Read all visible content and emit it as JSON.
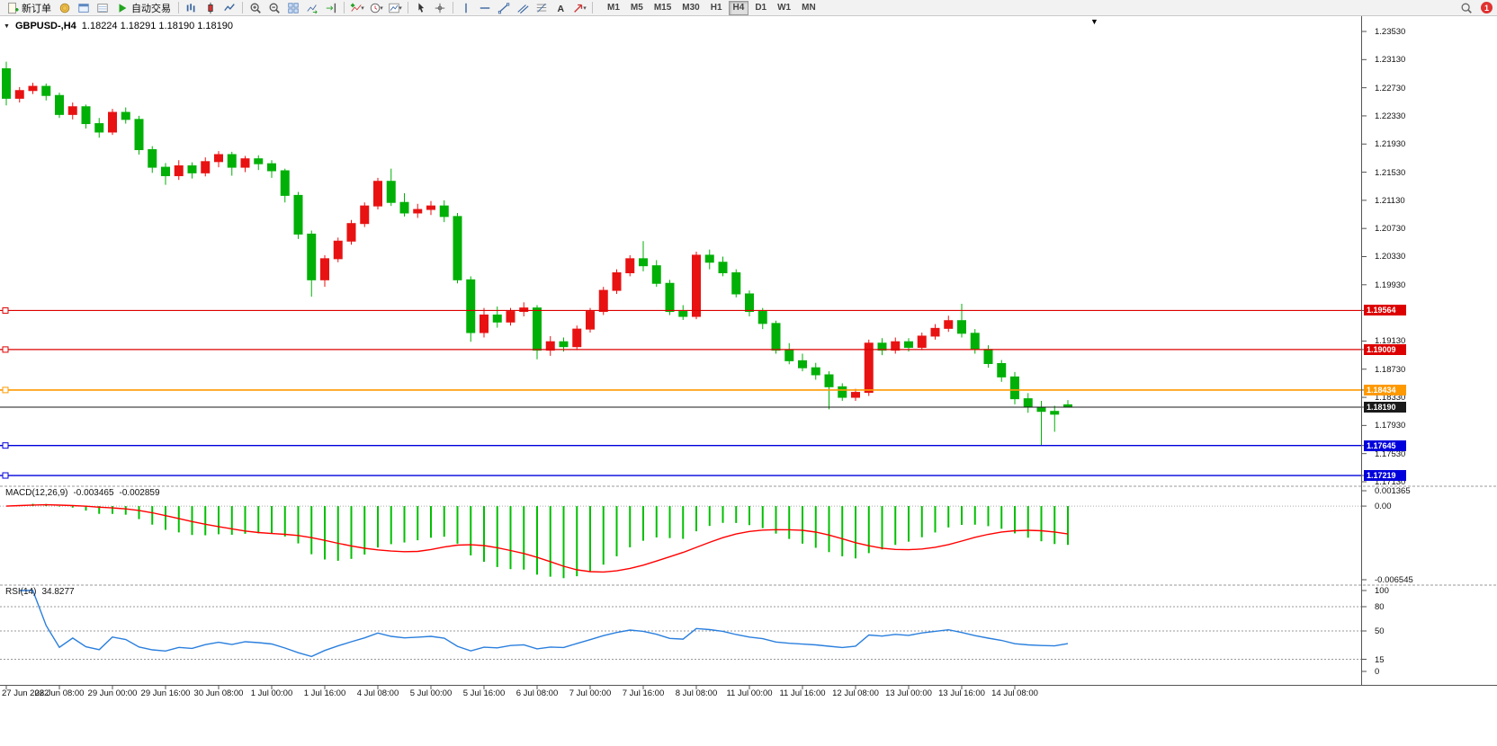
{
  "colors": {
    "up": "#e81212",
    "down": "#00b007",
    "macd_hist": "#00c000",
    "macd_signal": "#ff0000",
    "rsi_line": "#2a7fde"
  },
  "toolbar": {
    "items": [
      {
        "t": "btn",
        "n": "new-order",
        "g": "newdoc",
        "label": "新订单"
      },
      {
        "t": "ico",
        "n": "charts-profile",
        "g": "coin"
      },
      {
        "t": "ico",
        "n": "profiles",
        "g": "window"
      },
      {
        "t": "ico",
        "n": "terminal",
        "g": "terminal"
      },
      {
        "t": "btn",
        "n": "auto-trading",
        "g": "play",
        "label": "自动交易"
      },
      {
        "t": "sep"
      },
      {
        "t": "ico",
        "n": "bar-chart",
        "g": "bars"
      },
      {
        "t": "ico",
        "n": "candlestick-chart",
        "g": "candle"
      },
      {
        "t": "ico",
        "n": "line-chart",
        "g": "line"
      },
      {
        "t": "sep"
      },
      {
        "t": "ico",
        "n": "zoom-in",
        "g": "zoomin"
      },
      {
        "t": "ico",
        "n": "zoom-out",
        "g": "zoomout"
      },
      {
        "t": "ico",
        "n": "tile-windows",
        "g": "tile"
      },
      {
        "t": "ico",
        "n": "auto-scroll",
        "g": "autoscroll"
      },
      {
        "t": "ico",
        "n": "chart-shift",
        "g": "shift"
      },
      {
        "t": "sep"
      },
      {
        "t": "ico",
        "n": "indicators",
        "g": "indicators",
        "dd": true
      },
      {
        "t": "ico",
        "n": "periods",
        "g": "clock",
        "dd": true
      },
      {
        "t": "ico",
        "n": "templates",
        "g": "template",
        "dd": true
      },
      {
        "t": "sep"
      },
      {
        "t": "ico",
        "n": "cursor",
        "g": "cursor"
      },
      {
        "t": "ico",
        "n": "crosshair",
        "g": "crosshair"
      },
      {
        "t": "sep"
      },
      {
        "t": "ico",
        "n": "vertical-line",
        "g": "vline"
      },
      {
        "t": "ico",
        "n": "horizontal-line",
        "g": "hline"
      },
      {
        "t": "ico",
        "n": "trendline",
        "g": "trend"
      },
      {
        "t": "ico",
        "n": "equidistant-channel",
        "g": "channel"
      },
      {
        "t": "ico",
        "n": "fibonacci-retracement",
        "g": "fibo"
      },
      {
        "t": "ico",
        "n": "text-label",
        "g": "text"
      },
      {
        "t": "ico",
        "n": "arrow-objects",
        "g": "arrow",
        "dd": true
      },
      {
        "t": "sep"
      }
    ],
    "timeframes": [
      "M1",
      "M5",
      "M15",
      "M30",
      "H1",
      "H4",
      "D1",
      "W1",
      "MN"
    ],
    "active_timeframe": "H4",
    "search_icon": "search",
    "notification_count": "1"
  },
  "chart": {
    "symbol_period": "GBPUSD-,H4",
    "ohlc": "1.18224 1.18291 1.18190 1.18190",
    "axis_labels": [
      "1.23530",
      "1.23130",
      "1.22730",
      "1.22330",
      "1.21930",
      "1.21530",
      "1.21130",
      "1.20730",
      "1.20330",
      "1.19930",
      "1.19130",
      "1.18730",
      "1.18330",
      "1.17930",
      "1.17530",
      "1.17130"
    ],
    "hlines": [
      {
        "price": 1.19564,
        "label": "1.19564",
        "color": "#dd0000",
        "handle": true,
        "width": 1.2
      },
      {
        "price": 1.19009,
        "label": "1.19009",
        "color": "#dd0000",
        "handle": true,
        "width": 1.2
      },
      {
        "price": 1.18434,
        "label": "1.18434",
        "color": "#ff9900",
        "handle": true,
        "width": 1.6
      },
      {
        "price": 1.1819,
        "label": "1.18190",
        "color": "#1a1a1a",
        "handle": false,
        "width": 1
      },
      {
        "price": 1.17645,
        "label": "1.17645",
        "color": "#0000dd",
        "handle": true,
        "width": 1.4
      },
      {
        "price": 1.17219,
        "label": "1.17219",
        "color": "#0000dd",
        "handle": true,
        "width": 1.4
      }
    ]
  },
  "macd": {
    "name": "MACD(12,26,9)",
    "value_main": "-0.003465",
    "value_signal": "-0.002859",
    "axis_max": "0.001365",
    "axis_zero": "0.00",
    "axis_min": "-0.006545"
  },
  "rsi": {
    "name": "RSI(14)",
    "value": "34.8277",
    "axis": [
      "100",
      "80",
      "50",
      "15",
      "0"
    ],
    "levels": [
      80,
      50,
      15
    ]
  },
  "time_axis": [
    "27 Jun 2022",
    "28 Jun 08:00",
    "29 Jun 00:00",
    "29 Jun 16:00",
    "30 Jun 08:00",
    "1 Jul 00:00",
    "1 Jul 16:00",
    "4 Jul 08:00",
    "5 Jul 00:00",
    "5 Jul 16:00",
    "6 Jul 08:00",
    "7 Jul 00:00",
    "7 Jul 16:00",
    "8 Jul 08:00",
    "11 Jul 00:00",
    "11 Jul 16:00",
    "12 Jul 08:00",
    "13 Jul 00:00",
    "13 Jul 16:00",
    "14 Jul 08:00"
  ],
  "chart_data": {
    "type": "candlestick+indicators",
    "symbol": "GBPUSD-",
    "period": "H4",
    "ylim": [
      1.1713,
      1.2353
    ],
    "macd_axis": {
      "max": 0.001365,
      "min": -0.006545
    },
    "rsi_axis": {
      "max": 100,
      "min": 0
    },
    "candles_ohlc": [
      [
        1.23,
        1.231,
        1.2248,
        1.2258
      ],
      [
        1.2258,
        1.2274,
        1.2252,
        1.2269
      ],
      [
        1.2269,
        1.228,
        1.2264,
        1.2275
      ],
      [
        1.2275,
        1.2279,
        1.2255,
        1.2262
      ],
      [
        1.2262,
        1.2266,
        1.223,
        1.2235
      ],
      [
        1.2235,
        1.2252,
        1.2228,
        1.2246
      ],
      [
        1.2246,
        1.2249,
        1.2215,
        1.2222
      ],
      [
        1.2222,
        1.223,
        1.2202,
        1.221
      ],
      [
        1.221,
        1.2243,
        1.2206,
        1.2238
      ],
      [
        1.2238,
        1.2245,
        1.2222,
        1.2228
      ],
      [
        1.2228,
        1.2233,
        1.2178,
        1.2185
      ],
      [
        1.2185,
        1.219,
        1.2152,
        1.216
      ],
      [
        1.216,
        1.2166,
        1.2135,
        1.2148
      ],
      [
        1.2148,
        1.217,
        1.2142,
        1.2162
      ],
      [
        1.2162,
        1.2167,
        1.2144,
        1.2152
      ],
      [
        1.2152,
        1.2174,
        1.2147,
        1.2168
      ],
      [
        1.2168,
        1.2183,
        1.216,
        1.2178
      ],
      [
        1.2178,
        1.2182,
        1.2148,
        1.216
      ],
      [
        1.216,
        1.2176,
        1.2153,
        1.2172
      ],
      [
        1.2172,
        1.2177,
        1.2156,
        1.2165
      ],
      [
        1.2165,
        1.217,
        1.2145,
        1.2155
      ],
      [
        1.2155,
        1.2158,
        1.211,
        1.212
      ],
      [
        1.212,
        1.2125,
        1.2058,
        1.2065
      ],
      [
        1.2065,
        1.207,
        1.1976,
        1.2
      ],
      [
        1.2,
        1.2035,
        1.199,
        1.203
      ],
      [
        1.203,
        1.206,
        1.2025,
        1.2055
      ],
      [
        1.2055,
        1.2085,
        1.205,
        1.208
      ],
      [
        1.208,
        1.211,
        1.2075,
        1.2105
      ],
      [
        1.2105,
        1.2145,
        1.21,
        1.214
      ],
      [
        1.214,
        1.2158,
        1.2105,
        1.211
      ],
      [
        1.211,
        1.2123,
        1.209,
        1.2095
      ],
      [
        1.2095,
        1.2108,
        1.2088,
        1.21
      ],
      [
        1.21,
        1.2112,
        1.2092,
        1.2105
      ],
      [
        1.2105,
        1.2113,
        1.2082,
        1.209
      ],
      [
        1.209,
        1.2095,
        1.1995,
        1.2
      ],
      [
        1.2,
        1.2005,
        1.1912,
        1.1925
      ],
      [
        1.1925,
        1.196,
        1.1918,
        1.195
      ],
      [
        1.195,
        1.1962,
        1.1932,
        1.194
      ],
      [
        1.194,
        1.196,
        1.1935,
        1.1955
      ],
      [
        1.1955,
        1.1968,
        1.1948,
        1.196
      ],
      [
        1.196,
        1.1964,
        1.1887,
        1.19
      ],
      [
        1.19,
        1.192,
        1.1892,
        1.1912
      ],
      [
        1.1912,
        1.1918,
        1.1898,
        1.1905
      ],
      [
        1.1905,
        1.1935,
        1.19,
        1.193
      ],
      [
        1.193,
        1.196,
        1.1925,
        1.1955
      ],
      [
        1.1955,
        1.199,
        1.195,
        1.1985
      ],
      [
        1.1985,
        1.2015,
        1.198,
        1.201
      ],
      [
        1.201,
        1.2035,
        1.2005,
        1.203
      ],
      [
        1.203,
        1.2055,
        1.2012,
        1.202
      ],
      [
        1.202,
        1.2028,
        1.199,
        1.1995
      ],
      [
        1.1995,
        1.2,
        1.195,
        1.1955
      ],
      [
        1.1955,
        1.1964,
        1.1943,
        1.1948
      ],
      [
        1.1948,
        1.204,
        1.1944,
        1.2035
      ],
      [
        1.2035,
        1.2043,
        1.2015,
        1.2025
      ],
      [
        1.2025,
        1.2033,
        1.2005,
        1.201
      ],
      [
        1.201,
        1.2015,
        1.1975,
        1.198
      ],
      [
        1.198,
        1.1985,
        1.1948,
        1.1955
      ],
      [
        1.1955,
        1.196,
        1.193,
        1.1938
      ],
      [
        1.1938,
        1.1942,
        1.1895,
        1.19
      ],
      [
        1.19,
        1.191,
        1.188,
        1.1885
      ],
      [
        1.1885,
        1.1895,
        1.187,
        1.1875
      ],
      [
        1.1875,
        1.1882,
        1.1858,
        1.1865
      ],
      [
        1.1865,
        1.187,
        1.1816,
        1.1848
      ],
      [
        1.1848,
        1.1853,
        1.1828,
        1.1833
      ],
      [
        1.1833,
        1.1845,
        1.1828,
        1.184
      ],
      [
        1.184,
        1.1915,
        1.1835,
        1.191
      ],
      [
        1.191,
        1.1917,
        1.1893,
        1.19
      ],
      [
        1.19,
        1.1918,
        1.1895,
        1.1912
      ],
      [
        1.1912,
        1.1917,
        1.1898,
        1.1904
      ],
      [
        1.1904,
        1.1925,
        1.19,
        1.192
      ],
      [
        1.192,
        1.1937,
        1.1915,
        1.1931
      ],
      [
        1.1931,
        1.1949,
        1.1926,
        1.1942
      ],
      [
        1.1942,
        1.1966,
        1.1918,
        1.1924
      ],
      [
        1.1924,
        1.193,
        1.1895,
        1.1901
      ],
      [
        1.1901,
        1.1907,
        1.1875,
        1.1881
      ],
      [
        1.1881,
        1.1886,
        1.1855,
        1.1862
      ],
      [
        1.1862,
        1.1869,
        1.1823,
        1.1831
      ],
      [
        1.1831,
        1.1839,
        1.1811,
        1.1819
      ],
      [
        1.1819,
        1.1828,
        1.1765,
        1.1813
      ],
      [
        1.1813,
        1.1821,
        1.1784,
        1.1809
      ],
      [
        1.18224,
        1.18291,
        1.1819,
        1.1819
      ]
    ]
  }
}
